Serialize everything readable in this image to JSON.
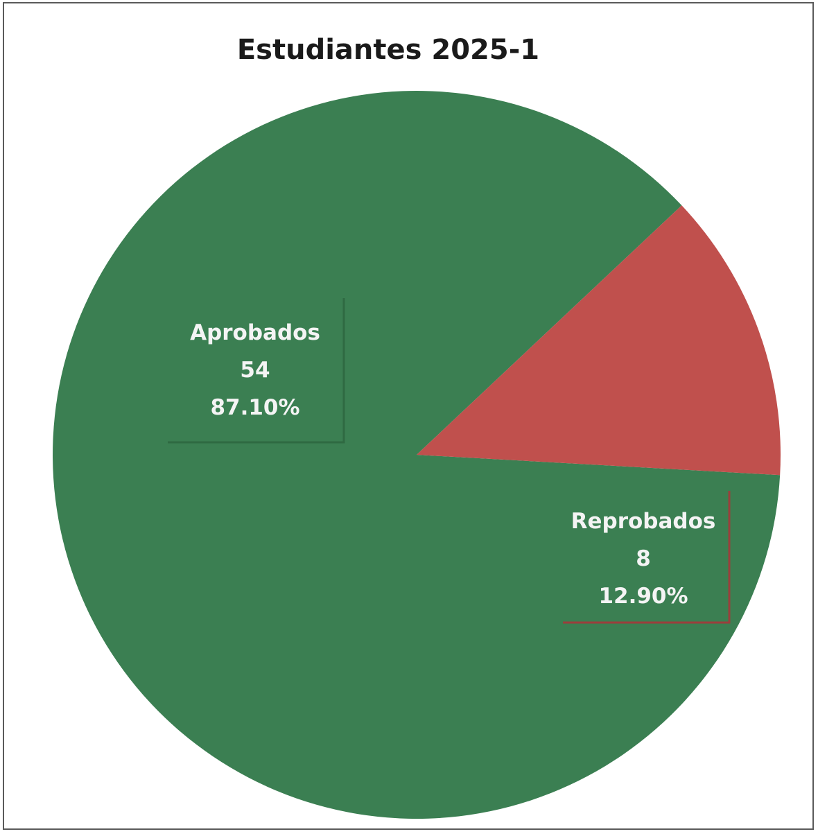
{
  "chart_data": {
    "type": "pie",
    "title": "Estudiantes 2025-1",
    "slices": [
      {
        "label": "Aprobados",
        "value": 54,
        "percent_label": "87.10%",
        "color": "#3b7f52"
      },
      {
        "label": "Reprobados",
        "value": 8,
        "percent_label": "12.90%",
        "color": "#c0504d"
      }
    ],
    "data_labels": true,
    "legend": "none"
  },
  "colors": {
    "background": "#ffffff",
    "frame": "#5a5a5a",
    "label_text": "#f4f4f4"
  }
}
